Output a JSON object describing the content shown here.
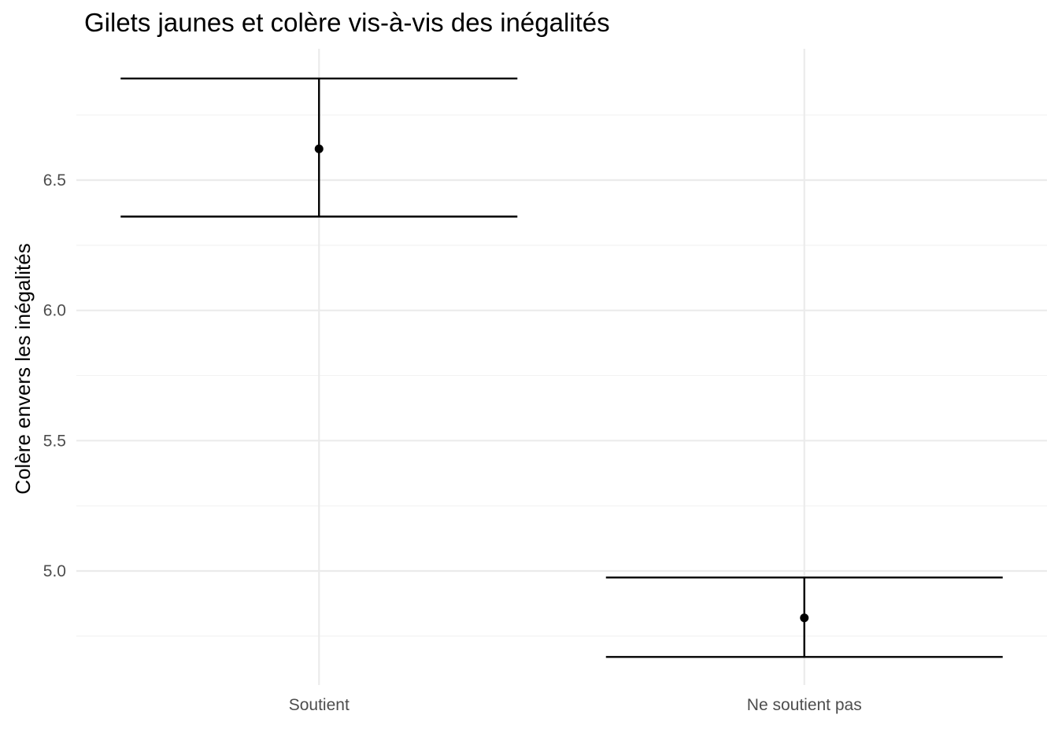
{
  "chart_data": {
    "type": "errorbar",
    "title": "Gilets jaunes et colère vis-à-vis des inégalités",
    "xlabel": "",
    "ylabel": "Colère envers les inégalités",
    "categories": [
      "Soutient",
      "Ne soutient pas"
    ],
    "series": [
      {
        "values": [
          6.62,
          4.82
        ],
        "lower": [
          6.36,
          4.67
        ],
        "upper": [
          6.89,
          4.975
        ]
      }
    ],
    "ylim": [
      4.56,
      7.0
    ],
    "yticks": [
      5.0,
      5.5,
      6.0,
      6.5
    ],
    "ytick_labels": [
      "5.0",
      "5.5",
      "6.0",
      "6.5"
    ],
    "grid": true,
    "legend": "none",
    "color": "#000000"
  }
}
